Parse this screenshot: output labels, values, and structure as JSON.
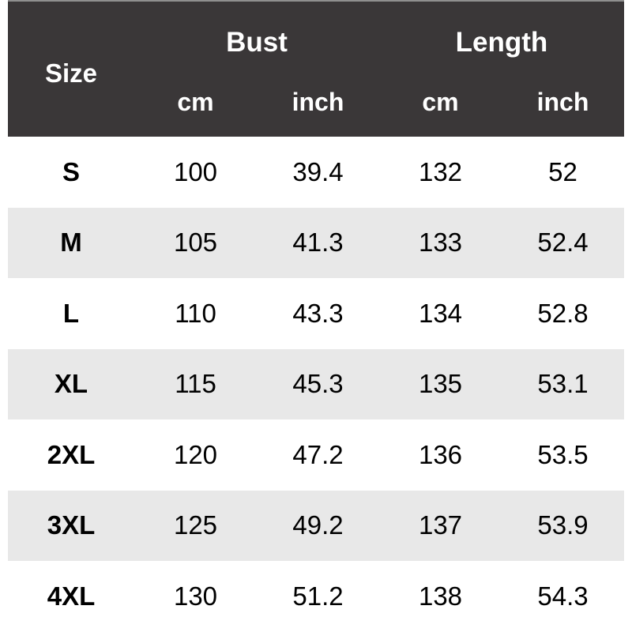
{
  "table": {
    "size_header": "Size",
    "groups": [
      {
        "label": "Bust",
        "units": [
          "cm",
          "inch"
        ]
      },
      {
        "label": "Length",
        "units": [
          "cm",
          "inch"
        ]
      }
    ],
    "rows": [
      {
        "size": "S",
        "values": [
          "100",
          "39.4",
          "132",
          "52"
        ]
      },
      {
        "size": "M",
        "values": [
          "105",
          "41.3",
          "133",
          "52.4"
        ]
      },
      {
        "size": "L",
        "values": [
          "110",
          "43.3",
          "134",
          "52.8"
        ]
      },
      {
        "size": "XL",
        "values": [
          "115",
          "45.3",
          "135",
          "53.1"
        ]
      },
      {
        "size": "2XL",
        "values": [
          "120",
          "47.2",
          "136",
          "53.5"
        ]
      },
      {
        "size": "3XL",
        "values": [
          "125",
          "49.2",
          "137",
          "53.9"
        ]
      },
      {
        "size": "4XL",
        "values": [
          "130",
          "51.2",
          "138",
          "54.3"
        ]
      }
    ]
  },
  "colors": {
    "header_bg": "#3a3738",
    "header_text": "#ffffff",
    "header_top_line": "#8f8f8f",
    "row_bg": "#ffffff",
    "row_alt_bg": "#e8e8e8",
    "body_text": "#000000"
  },
  "chart_data": {
    "type": "table",
    "columns": [
      "Size",
      "Bust (cm)",
      "Bust (inch)",
      "Length (cm)",
      "Length (inch)"
    ],
    "rows": [
      [
        "S",
        100,
        39.4,
        132,
        52
      ],
      [
        "M",
        105,
        41.3,
        133,
        52.4
      ],
      [
        "L",
        110,
        43.3,
        134,
        52.8
      ],
      [
        "XL",
        115,
        45.3,
        135,
        53.1
      ],
      [
        "2XL",
        120,
        47.2,
        136,
        53.5
      ],
      [
        "3XL",
        125,
        49.2,
        137,
        53.9
      ],
      [
        "4XL",
        130,
        51.2,
        138,
        54.3
      ]
    ]
  }
}
